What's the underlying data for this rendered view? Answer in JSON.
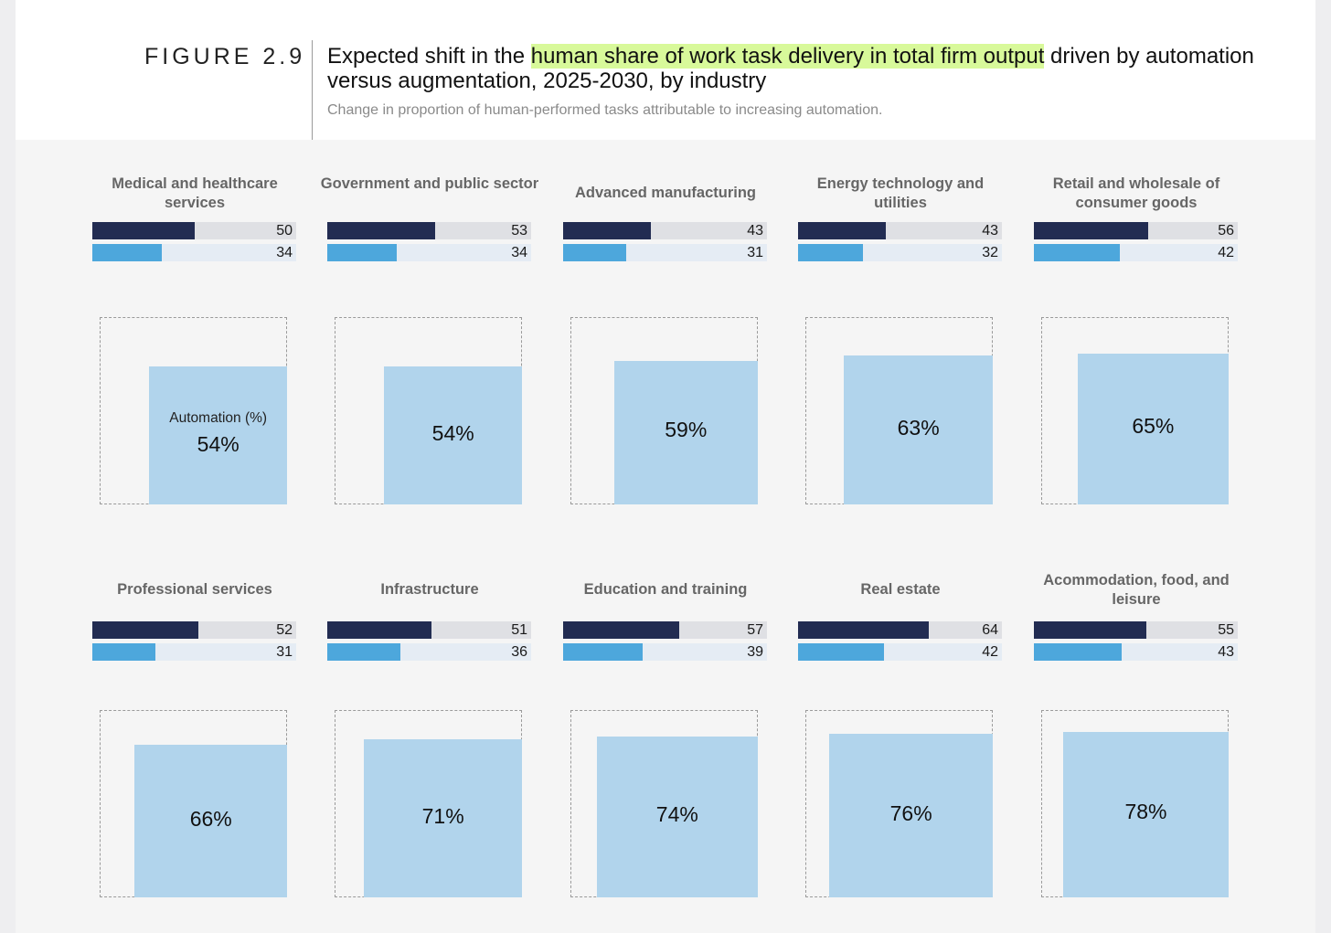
{
  "figure": {
    "label": "FIGURE 2.9",
    "title_pre": "Expected shift in the ",
    "title_highlight": "human share of work task delivery in total firm output",
    "title_post": " driven by automation versus augmentation, 2025-2030, by industry",
    "subtitle": "Change in proportion of human-performed tasks attributable to increasing automation.",
    "highlight_color": "#d8f99a"
  },
  "colors": {
    "bar_dark": "#222c52",
    "bar_dark_track": "#dfe0e4",
    "bar_light": "#4da7dc",
    "bar_light_track": "#e5ecf4",
    "automation_square": "#b1d4ec"
  },
  "automation_label": "Automation (%)",
  "chart_data": {
    "type": "bar",
    "bar_scale_max": 100,
    "series": [
      {
        "values": [
          50,
          53,
          43,
          43,
          56,
          52,
          51,
          57,
          64,
          55
        ]
      },
      {
        "values": [
          34,
          34,
          31,
          32,
          42,
          31,
          36,
          39,
          42,
          43
        ]
      }
    ],
    "panels": [
      {
        "title": "Medical and healthcare services",
        "dark": 50,
        "light": 34,
        "automation": 54,
        "automation_text": "54%",
        "show_label": true
      },
      {
        "title": "Government and public sector",
        "dark": 53,
        "light": 34,
        "automation": 54,
        "automation_text": "54%",
        "show_label": false
      },
      {
        "title": "Advanced manufacturing",
        "dark": 43,
        "light": 31,
        "automation": 59,
        "automation_text": "59%",
        "show_label": false
      },
      {
        "title": "Energy technology and utilities",
        "dark": 43,
        "light": 32,
        "automation": 63,
        "automation_text": "63%",
        "show_label": false
      },
      {
        "title": "Retail and wholesale of consumer goods",
        "dark": 56,
        "light": 42,
        "automation": 65,
        "automation_text": "65%",
        "show_label": false
      },
      {
        "title": "Professional services",
        "dark": 52,
        "light": 31,
        "automation": 66,
        "automation_text": "66%",
        "show_label": false
      },
      {
        "title": "Infrastructure",
        "dark": 51,
        "light": 36,
        "automation": 71,
        "automation_text": "71%",
        "show_label": false
      },
      {
        "title": "Education and training",
        "dark": 57,
        "light": 39,
        "automation": 74,
        "automation_text": "74%",
        "show_label": false
      },
      {
        "title": "Real estate",
        "dark": 64,
        "light": 42,
        "automation": 76,
        "automation_text": "76%",
        "show_label": false
      },
      {
        "title": "Acommodation, food, and leisure",
        "dark": 55,
        "light": 43,
        "automation": 78,
        "automation_text": "78%",
        "show_label": false
      }
    ]
  }
}
